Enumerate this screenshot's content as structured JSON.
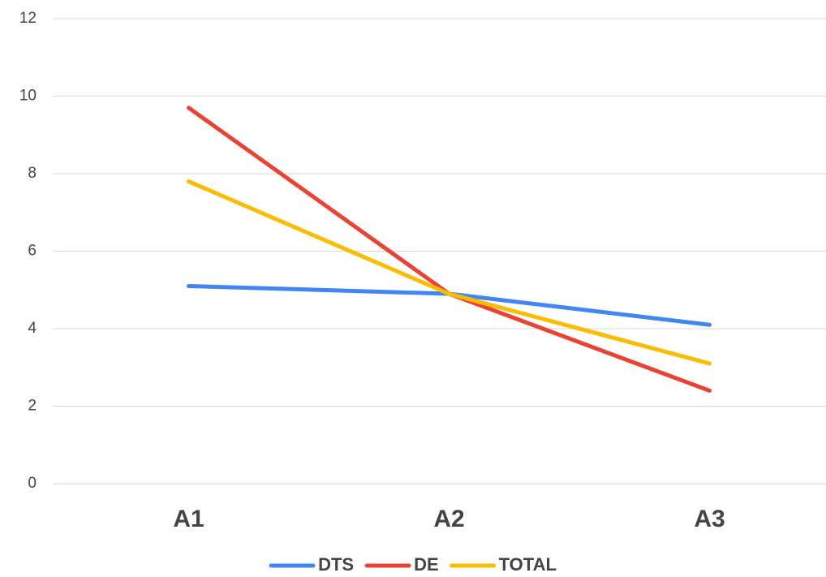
{
  "chart_data": {
    "type": "line",
    "categories": [
      "A1",
      "A2",
      "A3"
    ],
    "series": [
      {
        "name": "DTS",
        "color": "#4285f4",
        "values": [
          5.1,
          4.9,
          4.1
        ]
      },
      {
        "name": "DE",
        "color": "#ea4335",
        "values": [
          9.7,
          4.9,
          2.4
        ]
      },
      {
        "name": "TOTAL",
        "color": "#fbbc04",
        "values": [
          7.8,
          4.9,
          3.1
        ]
      }
    ],
    "ylim": [
      0,
      12
    ],
    "yticks": [
      0,
      2,
      4,
      6,
      8,
      10,
      12
    ],
    "grid": true,
    "legend": "bottom"
  }
}
